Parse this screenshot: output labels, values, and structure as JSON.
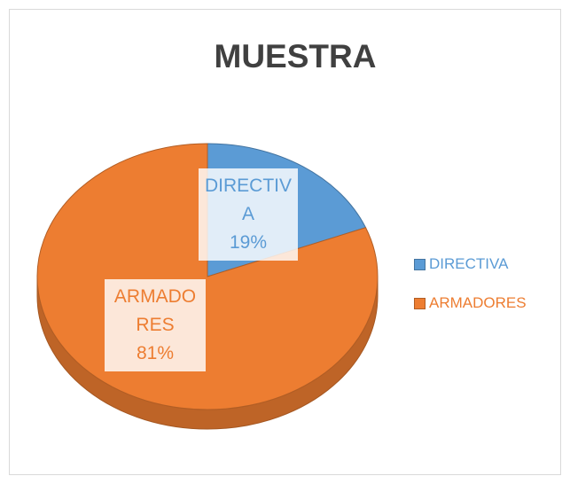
{
  "chart_data": {
    "type": "pie",
    "title": "MUESTRA",
    "categories": [
      "DIRECTIVA",
      "ARMADORES"
    ],
    "values": [
      19,
      81
    ],
    "value_labels": [
      "19%",
      "81%"
    ],
    "colors": [
      "#5b9bd5",
      "#ed7d31"
    ],
    "legend": "right"
  }
}
